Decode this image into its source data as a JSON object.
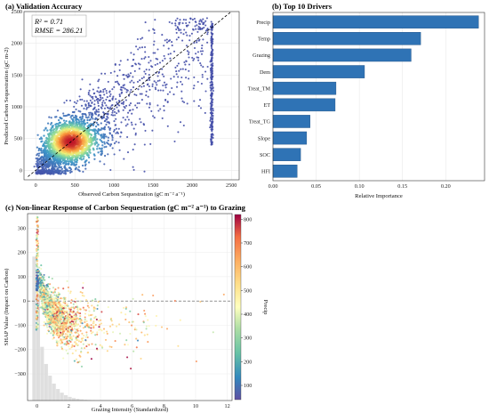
{
  "chart_data": [
    {
      "type": "scatter",
      "title": "(a) Validation Accuracy",
      "xlabel": "Observed Carbon Sequestration (gC m⁻² a⁻¹)",
      "ylabel": "Predicted Carbon Sequestration (gC m-2)",
      "xlim": [
        -150,
        2600
      ],
      "ylim": [
        -150,
        2500
      ],
      "xticks": [
        "0",
        "500",
        "1000",
        "1500",
        "2000",
        "2500"
      ],
      "yticks": [
        "0",
        "500",
        "1000",
        "1500",
        "2000",
        "2500"
      ],
      "annotations": [
        "R² = 0.71",
        "RMSE = 286.21"
      ],
      "reference_line": "1:1 dashed",
      "colormap": "density (blue → yellow → red)",
      "density_peak": {
        "x": 450,
        "y": 450
      },
      "clipping_column_x": 2250,
      "grid": true
    },
    {
      "type": "bar",
      "orientation": "horizontal",
      "title": "(b) Top 10 Drivers",
      "xlabel": "Relative Importance",
      "xlim": [
        0,
        0.245
      ],
      "xticks": [
        "0.00",
        "0.05",
        "0.10",
        "0.15",
        "0.20"
      ],
      "categories": [
        "Precip",
        "Temp",
        "Grazing",
        "Dem",
        "Treat_TM",
        "ET",
        "Treat_TG",
        "Slope",
        "SOC",
        "HFI"
      ],
      "values": [
        0.238,
        0.171,
        0.16,
        0.106,
        0.073,
        0.072,
        0.043,
        0.039,
        0.032,
        0.028
      ],
      "bar_color": "#2f73b5",
      "grid": true
    },
    {
      "type": "scatter",
      "title": "(c) Non-linear Response of Carbon Sequestration (gC m⁻² a⁻¹) to Grazing",
      "xlabel": "Grazing Intensity (Standardized)",
      "ylabel": "SHAP Value (Impact on Carbon)",
      "xlim": [
        -0.6,
        12.3
      ],
      "ylim": [
        -410,
        360
      ],
      "xticks": [
        "0",
        "2",
        "4",
        "6",
        "8",
        "10",
        "12"
      ],
      "yticks": [
        "−300",
        "−200",
        "−100",
        "0",
        "100",
        "200",
        "300"
      ],
      "colorbar": {
        "label": "Precip",
        "range": [
          40,
          820
        ],
        "ticks": [
          "100",
          "200",
          "300",
          "400",
          "500",
          "600",
          "700",
          "800"
        ]
      },
      "zero_line": "dashed",
      "histogram": "grey distribution of grazing intensity along the x axis",
      "grid": true
    }
  ]
}
